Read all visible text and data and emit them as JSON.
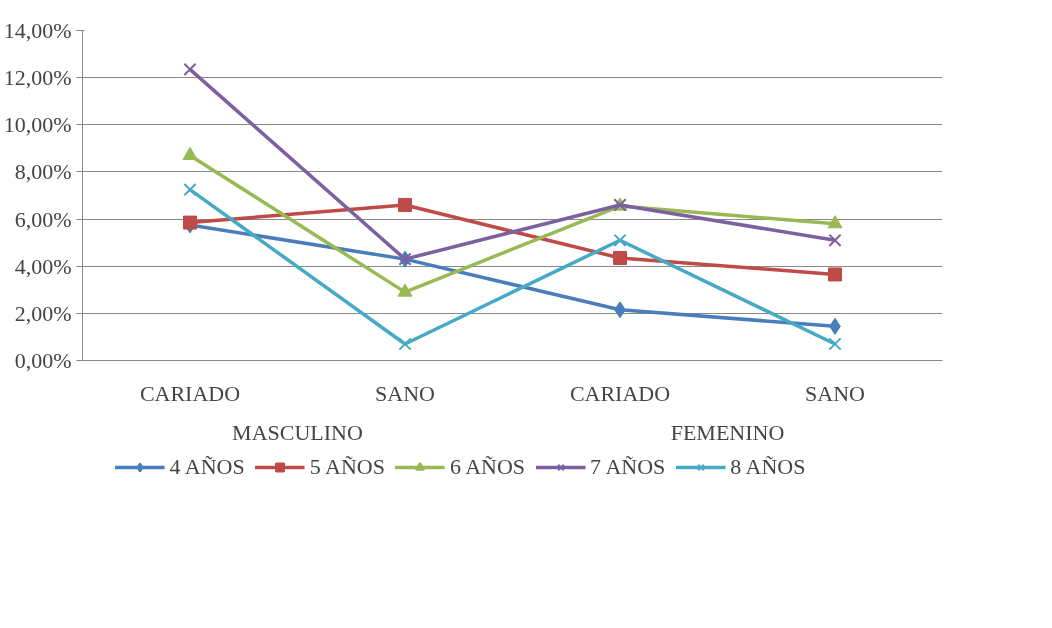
{
  "chart_data": {
    "type": "line",
    "categories": [
      "CARIADO",
      "SANO",
      "CARIADO",
      "SANO"
    ],
    "annotations": [
      "MASCULINO",
      "FEMENINO"
    ],
    "series": [
      {
        "name": "4 AÑOS",
        "color": "#4a7ebb",
        "marker": "diamond",
        "values": [
          5.75,
          4.3,
          2.15,
          1.45
        ]
      },
      {
        "name": "5 AÑOS",
        "color": "#be4b48",
        "marker": "square",
        "values": [
          5.85,
          6.6,
          4.35,
          3.65
        ]
      },
      {
        "name": "6 AÑOS",
        "color": "#98b954",
        "marker": "triangle",
        "values": [
          8.7,
          2.9,
          6.55,
          5.8
        ]
      },
      {
        "name": "7 AÑOS",
        "color": "#7d60a0",
        "marker": "cross",
        "values": [
          12.35,
          4.3,
          6.6,
          5.1
        ]
      },
      {
        "name": "8 AÑOS",
        "color": "#46aac5",
        "marker": "cross",
        "values": [
          7.25,
          0.7,
          5.1,
          0.7
        ]
      }
    ],
    "ylim": [
      0,
      14
    ],
    "yticks": [
      {
        "value": 0,
        "label": "0,00%"
      },
      {
        "value": 2,
        "label": "2,00%"
      },
      {
        "value": 4,
        "label": "4,00%"
      },
      {
        "value": 6,
        "label": "6,00%"
      },
      {
        "value": 8,
        "label": "8,00%"
      },
      {
        "value": 10,
        "label": "10,00%"
      },
      {
        "value": 12,
        "label": "12,00%"
      },
      {
        "value": 14,
        "label": "14,00%"
      }
    ],
    "grid": "y",
    "legend": "bottom",
    "line_style": "solid"
  }
}
